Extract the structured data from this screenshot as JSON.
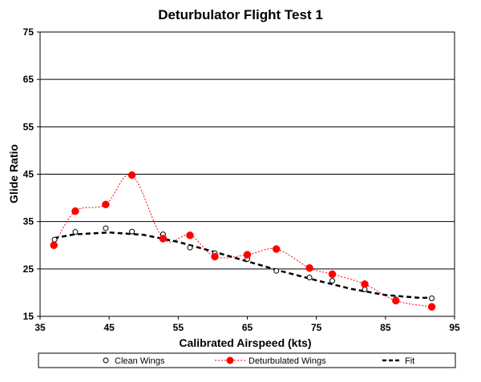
{
  "chart_data": {
    "type": "scatter",
    "title": "Deturbulator Flight Test 1",
    "xlabel": "Calibrated Airspeed  (kts)",
    "ylabel": "Glide Ratio",
    "xlim": [
      35,
      95
    ],
    "ylim": [
      15,
      75
    ],
    "xticks": [
      35,
      45,
      55,
      65,
      75,
      85,
      95
    ],
    "yticks": [
      15,
      25,
      35,
      45,
      55,
      65,
      75
    ],
    "grid": "horizontal",
    "legend_position": "bottom",
    "series": [
      {
        "name": "Clean Wings",
        "style": "open-circle-markers",
        "color": "#000000",
        "x": [
          37.1,
          40.1,
          44.5,
          48.3,
          52.8,
          56.7,
          60.3,
          65.0,
          69.2,
          74.0,
          77.3,
          82.0,
          86.5,
          91.7
        ],
        "y": [
          31.2,
          32.8,
          33.6,
          32.9,
          32.3,
          29.5,
          28.3,
          27.1,
          24.6,
          23.2,
          22.5,
          20.7,
          18.6,
          18.8
        ]
      },
      {
        "name": "Deturbulated Wings",
        "style": "red-dotted-line-filled-markers",
        "color": "#ff0000",
        "x": [
          37.0,
          40.1,
          44.5,
          48.3,
          52.8,
          56.7,
          60.3,
          65.0,
          69.2,
          74.0,
          77.3,
          82.0,
          86.5,
          91.7
        ],
        "y": [
          30.0,
          37.2,
          38.6,
          44.8,
          31.4,
          32.1,
          27.6,
          28.0,
          29.2,
          25.2,
          23.9,
          21.8,
          18.3,
          17.0
        ]
      },
      {
        "name": "Fit",
        "style": "black-dashed-line",
        "color": "#000000",
        "x": [
          37,
          40,
          45,
          50,
          55,
          60,
          65,
          70,
          75,
          80,
          85,
          90,
          92
        ],
        "y": [
          31.5,
          32.3,
          32.7,
          32.2,
          30.7,
          28.7,
          26.6,
          24.5,
          22.6,
          20.8,
          19.5,
          18.9,
          18.9
        ]
      }
    ]
  }
}
